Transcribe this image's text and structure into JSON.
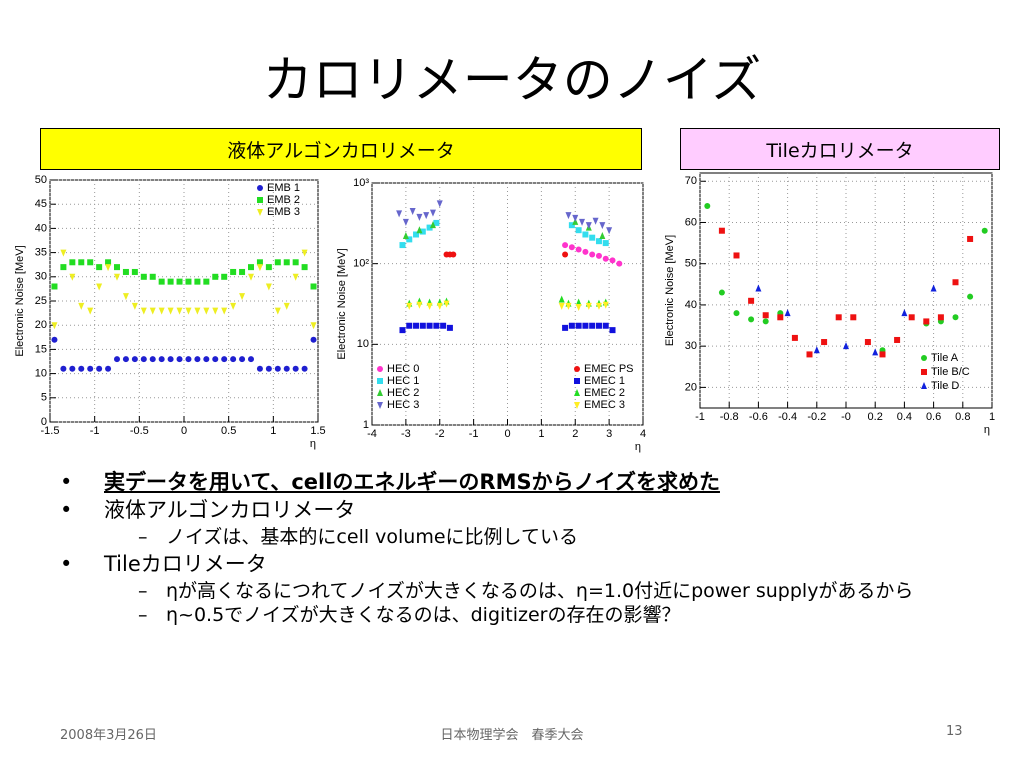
{
  "slide": {
    "title": "カロリメータのノイズ",
    "sections": [
      "液体アルゴンカロリメータ",
      "Tileカロリメータ"
    ],
    "bullets": [
      {
        "text": "実データを用いて、cellのエネルギーのRMSからノイズを求めた"
      },
      {
        "text": "液体アルゴンカロリメータ",
        "sub": [
          "ノイズは、基本的にcell volumeに比例している"
        ]
      },
      {
        "text": "Tileカロリメータ",
        "sub": [
          "ηが高くなるにつれてノイズが大きくなるのは、η=1.0付近にpower supplyがあるから",
          "η~0.5でノイズが大きくなるのは、digitizerの存在の影響？"
        ]
      }
    ]
  },
  "footer": {
    "date": "2008年3月26日",
    "event": "日本物理学会　春季大会",
    "page": "13"
  },
  "chart_data": [
    {
      "type": "scatter",
      "ylabel": "Electronic Noise [MeV]",
      "xlabel": "η",
      "xlim": [
        -1.5,
        1.5
      ],
      "ylim": [
        0,
        50
      ],
      "xticks": [
        -1.5,
        -1,
        -0.5,
        0,
        0.5,
        1,
        1.5
      ],
      "yticks": [
        0,
        5,
        10,
        15,
        20,
        25,
        30,
        35,
        40,
        45,
        50
      ],
      "grid": true,
      "legend": "upper right",
      "series": [
        {
          "name": "EMB 1",
          "color": "#1f1fd0",
          "marker": "circle",
          "x": [
            -1.45,
            -1.35,
            -1.25,
            -1.15,
            -1.05,
            -0.95,
            -0.85,
            -0.75,
            -0.65,
            -0.55,
            -0.45,
            -0.35,
            -0.25,
            -0.15,
            -0.05,
            0.05,
            0.15,
            0.25,
            0.35,
            0.45,
            0.55,
            0.65,
            0.75,
            0.85,
            0.95,
            1.05,
            1.15,
            1.25,
            1.35,
            1.45
          ],
          "values": [
            17,
            11,
            11,
            11,
            11,
            11,
            11,
            13,
            13,
            13,
            13,
            13,
            13,
            13,
            13,
            13,
            13,
            13,
            13,
            13,
            13,
            13,
            13,
            11,
            11,
            11,
            11,
            11,
            11,
            17
          ]
        },
        {
          "name": "EMB 2",
          "color": "#22dd22",
          "marker": "square",
          "x": [
            -1.45,
            -1.35,
            -1.25,
            -1.15,
            -1.05,
            -0.95,
            -0.85,
            -0.75,
            -0.65,
            -0.55,
            -0.45,
            -0.35,
            -0.25,
            -0.15,
            -0.05,
            0.05,
            0.15,
            0.25,
            0.35,
            0.45,
            0.55,
            0.65,
            0.75,
            0.85,
            0.95,
            1.05,
            1.15,
            1.25,
            1.35,
            1.45
          ],
          "values": [
            28,
            32,
            33,
            33,
            33,
            32,
            33,
            32,
            31,
            31,
            30,
            30,
            29,
            29,
            29,
            29,
            29,
            29,
            30,
            30,
            31,
            31,
            32,
            33,
            32,
            33,
            33,
            33,
            32,
            28
          ]
        },
        {
          "name": "EMB 3",
          "color": "#eeee22",
          "marker": "triangle-down",
          "x": [
            -1.45,
            -1.35,
            -1.25,
            -1.15,
            -1.05,
            -0.95,
            -0.85,
            -0.75,
            -0.65,
            -0.55,
            -0.45,
            -0.35,
            -0.25,
            -0.15,
            -0.05,
            0.05,
            0.15,
            0.25,
            0.35,
            0.45,
            0.55,
            0.65,
            0.75,
            0.85,
            0.95,
            1.05,
            1.15,
            1.25,
            1.35,
            1.45
          ],
          "values": [
            20,
            35,
            30,
            24,
            23,
            28,
            32,
            30,
            26,
            24,
            23,
            23,
            23,
            23,
            23,
            23,
            23,
            23,
            23,
            23,
            24,
            26,
            30,
            32,
            28,
            23,
            24,
            30,
            35,
            20
          ]
        }
      ]
    },
    {
      "type": "scatter",
      "log_y": true,
      "ylabel": "Electronic Noise [MeV]",
      "xlabel": "η",
      "xlim": [
        -4,
        4
      ],
      "ylim": [
        1,
        1000
      ],
      "xticks": [
        -4,
        -3,
        -2,
        -1,
        0,
        1,
        2,
        3,
        4
      ],
      "yticks": [
        1,
        10,
        {
          "value": 100,
          "label": "10²"
        },
        {
          "value": 1000,
          "label": "10³"
        }
      ],
      "grid": true,
      "legend": "lower split",
      "series": [
        {
          "name": "HEC 0",
          "color": "#ff33cc",
          "marker": "circle",
          "x": [
            1.7,
            1.9,
            2.1,
            2.3,
            2.5,
            2.7,
            2.9,
            3.1,
            3.3
          ],
          "values": [
            170,
            160,
            150,
            140,
            130,
            125,
            115,
            110,
            100
          ]
        },
        {
          "name": "HEC 1",
          "color": "#33ddee",
          "marker": "square",
          "x": [
            -3.1,
            -2.9,
            -2.7,
            -2.5,
            -2.3,
            -2.1,
            1.9,
            2.1,
            2.3,
            2.5,
            2.7,
            2.9
          ],
          "values": [
            170,
            200,
            230,
            250,
            280,
            320,
            300,
            260,
            230,
            210,
            190,
            180
          ]
        },
        {
          "name": "HEC 2",
          "color": "#33cc33",
          "marker": "triangle-up",
          "x": [
            -3,
            -2.6,
            -2.2,
            2,
            2.4,
            2.8
          ],
          "values": [
            220,
            260,
            300,
            330,
            280,
            220
          ]
        },
        {
          "name": "HEC 3",
          "color": "#6666cc",
          "marker": "triangle-down",
          "x": [
            -3.2,
            -3,
            -2.8,
            -2.6,
            -2.4,
            -2.2,
            -2,
            1.8,
            2,
            2.2,
            2.4,
            2.6,
            2.8,
            3
          ],
          "values": [
            420,
            330,
            450,
            380,
            400,
            430,
            560,
            400,
            370,
            330,
            300,
            340,
            300,
            260
          ]
        },
        {
          "name": "EMEC PS",
          "color": "#ee1111",
          "marker": "circle",
          "x": [
            -1.8,
            -1.7,
            -1.6,
            1.7
          ],
          "values": [
            130,
            130,
            130,
            130
          ]
        },
        {
          "name": "EMEC 1",
          "color": "#1111dd",
          "marker": "square",
          "x": [
            -3.1,
            -2.9,
            -2.7,
            -2.5,
            -2.3,
            -2.1,
            -1.9,
            -1.7,
            1.7,
            1.9,
            2.1,
            2.3,
            2.5,
            2.7,
            2.9,
            3.1
          ],
          "values": [
            15,
            17,
            17,
            17,
            17,
            17,
            17,
            16,
            16,
            17,
            17,
            17,
            17,
            17,
            17,
            15
          ]
        },
        {
          "name": "EMEC 2",
          "color": "#22dd22",
          "marker": "triangle-up",
          "x": [
            -2.9,
            -2.6,
            -2.3,
            -2,
            -1.8,
            1.6,
            1.8,
            2.1,
            2.4,
            2.7,
            2.9
          ],
          "values": [
            32,
            34,
            33,
            33,
            34,
            36,
            32,
            33,
            32,
            32,
            33
          ]
        },
        {
          "name": "EMEC 3",
          "color": "#ffee22",
          "marker": "triangle-down",
          "x": [
            -2.9,
            -2.6,
            -2.3,
            -2,
            -1.8,
            1.6,
            1.8,
            2.1,
            2.4,
            2.7,
            2.9
          ],
          "values": [
            30,
            31,
            30,
            30,
            32,
            30,
            30,
            29,
            30,
            30,
            31
          ]
        }
      ]
    },
    {
      "type": "scatter",
      "ylabel": "Electronic Noise [MeV]",
      "xlabel": "η",
      "xlim": [
        -1,
        1
      ],
      "ylim": [
        15,
        72
      ],
      "xticks": [
        -1,
        -0.8,
        -0.6,
        -0.4,
        -0.2,
        {
          "value": 0,
          "label": "-0"
        },
        0.2,
        0.4,
        0.6,
        0.8,
        1
      ],
      "yticks": [
        20,
        30,
        40,
        50,
        60,
        70
      ],
      "grid": true,
      "legend": "lower right",
      "series": [
        {
          "name": "Tile A",
          "color": "#22cc22",
          "marker": "circle",
          "x": [
            -0.95,
            -0.85,
            -0.75,
            -0.65,
            -0.55,
            -0.45,
            0.25,
            0.55,
            0.65,
            0.75,
            0.85,
            0.95
          ],
          "values": [
            64,
            43,
            38,
            36.5,
            36,
            38,
            29,
            35.5,
            36,
            37,
            42,
            58
          ]
        },
        {
          "name": "Tile B/C",
          "color": "#ee1111",
          "marker": "square",
          "x": [
            -0.85,
            -0.75,
            -0.65,
            -0.55,
            -0.45,
            -0.35,
            -0.25,
            -0.15,
            -0.05,
            0.05,
            0.15,
            0.25,
            0.35,
            0.45,
            0.55,
            0.65,
            0.75,
            0.85
          ],
          "values": [
            58,
            52,
            41,
            37.5,
            37,
            32,
            28,
            31,
            37,
            37,
            31,
            28,
            31.5,
            37,
            36,
            37,
            45.5,
            56
          ]
        },
        {
          "name": "Tile D",
          "color": "#1122dd",
          "marker": "triangle-up",
          "x": [
            -0.6,
            -0.4,
            -0.2,
            0,
            0.2,
            0.4,
            0.6
          ],
          "values": [
            44,
            38,
            29,
            30,
            28.5,
            38,
            44
          ]
        }
      ]
    }
  ]
}
